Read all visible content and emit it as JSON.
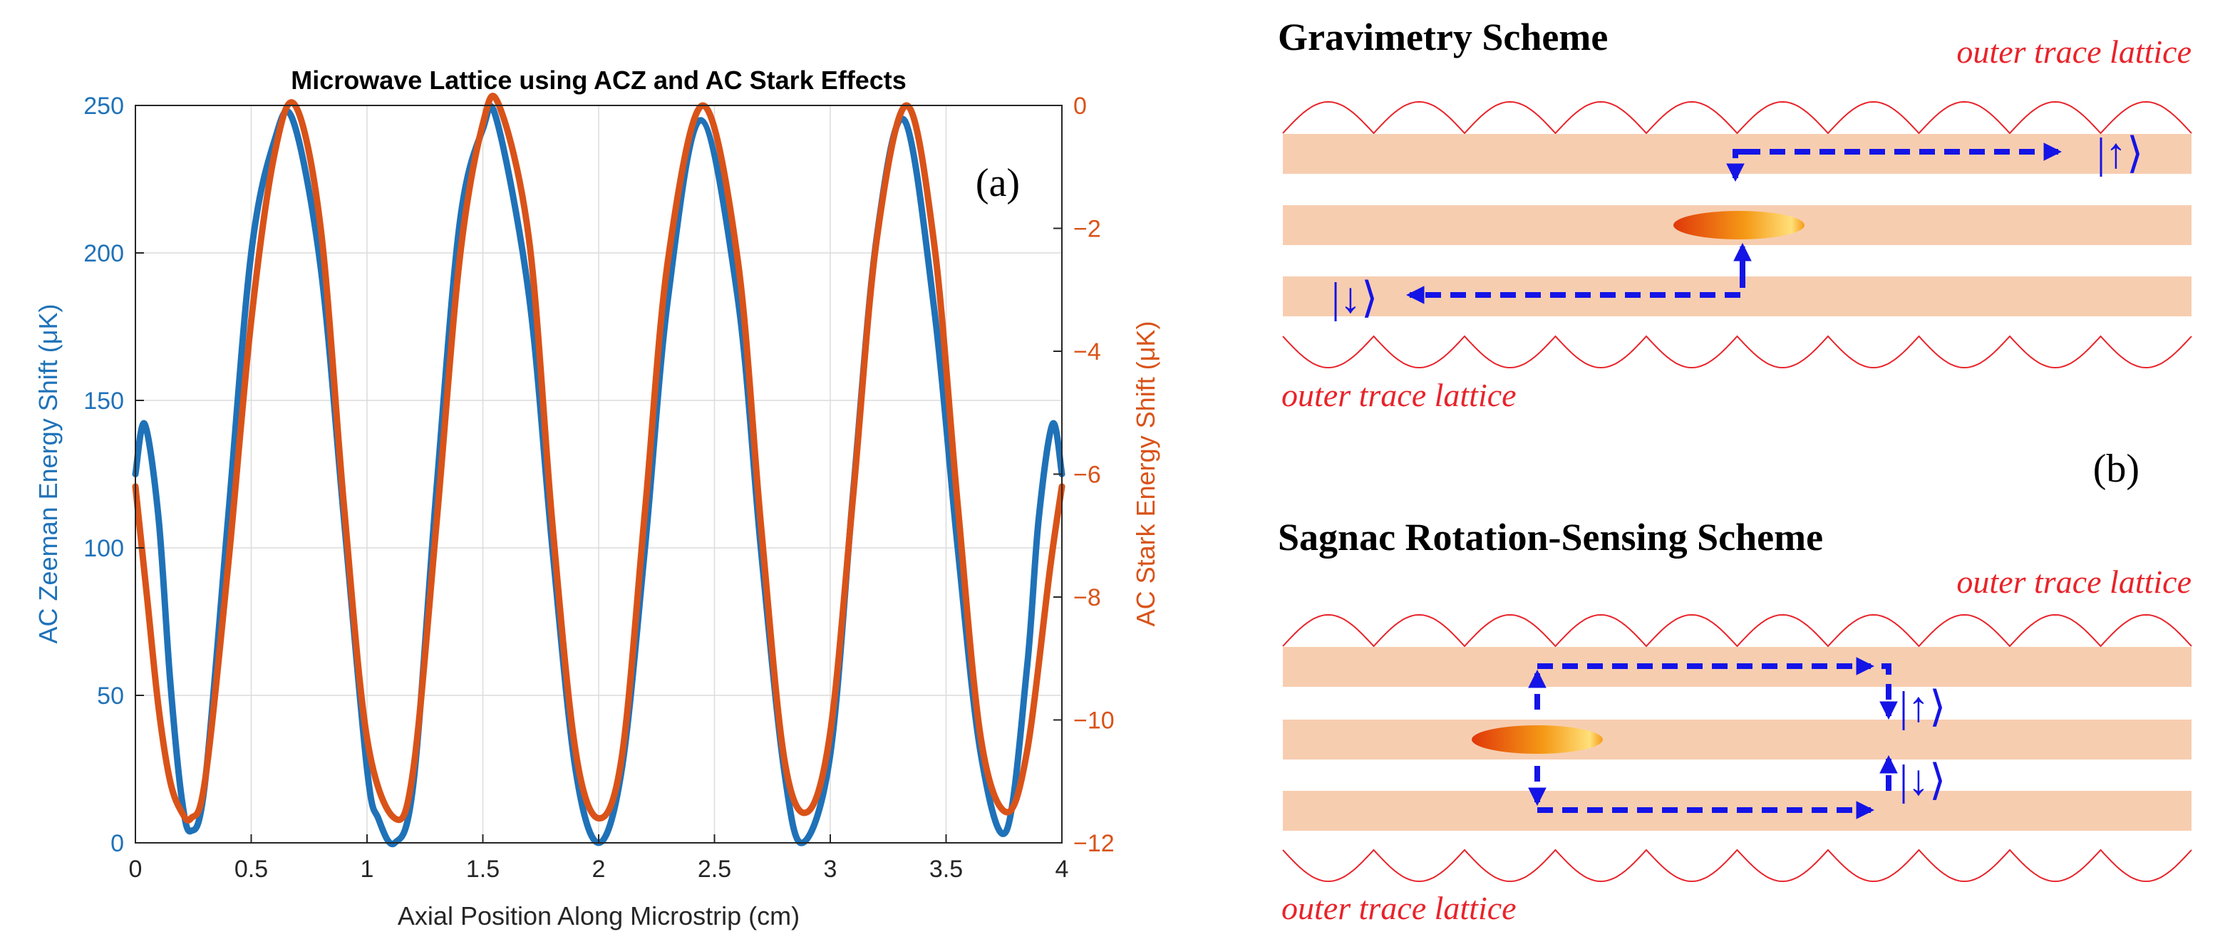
{
  "colors": {
    "zeeman": "#1f72b8",
    "stark": "#d95319",
    "lattice": "#e8232a",
    "band": "#f7cdb0",
    "arrow": "#1414e6"
  },
  "chart_data": {
    "type": "line",
    "title": "Microwave Lattice using ACZ and AC Stark Effects",
    "xlabel": "Axial Position Along Microstrip (cm)",
    "ylabel_left": "AC Zeeman Energy Shift (μK)",
    "ylabel_right": "AC Stark Energy Shift (μK)",
    "xlim": [
      0,
      4
    ],
    "ylim_left": [
      0,
      250
    ],
    "ylim_right": [
      -12,
      0
    ],
    "xticks": [
      "0",
      "0.5",
      "1",
      "1.5",
      "2",
      "2.5",
      "3",
      "3.5",
      "4"
    ],
    "yticks_left": [
      "0",
      "50",
      "100",
      "150",
      "200",
      "250"
    ],
    "yticks_right": [
      "0",
      "−2",
      "−4",
      "−6",
      "−8",
      "−10",
      "−12"
    ],
    "grid": true,
    "annotation": "(a)",
    "series": [
      {
        "name": "AC Zeeman Energy Shift",
        "axis": "left",
        "x": [
          0.0,
          0.04,
          0.1,
          0.15,
          0.2,
          0.24,
          0.3,
          0.4,
          0.5,
          0.6,
          0.68,
          0.8,
          0.9,
          1.0,
          1.05,
          1.12,
          1.2,
          1.3,
          1.4,
          1.5,
          1.56,
          1.7,
          1.8,
          1.9,
          2.0,
          2.1,
          2.2,
          2.3,
          2.44,
          2.6,
          2.7,
          2.8,
          2.88,
          3.0,
          3.1,
          3.2,
          3.32,
          3.45,
          3.55,
          3.65,
          3.76,
          3.85,
          3.9,
          3.96,
          4.0
        ],
        "values": [
          125,
          142,
          110,
          55,
          15,
          4,
          20,
          110,
          200,
          238,
          245,
          195,
          110,
          25,
          8,
          0,
          20,
          120,
          210,
          242,
          245,
          185,
          100,
          25,
          0,
          25,
          100,
          185,
          245,
          185,
          100,
          25,
          0,
          30,
          120,
          205,
          245,
          180,
          100,
          30,
          4,
          60,
          110,
          142,
          125
        ]
      },
      {
        "name": "AC Stark Energy Shift",
        "axis": "right",
        "x": [
          0.0,
          0.05,
          0.1,
          0.15,
          0.2,
          0.24,
          0.3,
          0.4,
          0.5,
          0.6,
          0.69,
          0.8,
          0.9,
          1.0,
          1.12,
          1.2,
          1.3,
          1.4,
          1.5,
          1.57,
          1.7,
          1.8,
          1.9,
          2.0,
          2.1,
          2.2,
          2.3,
          2.45,
          2.6,
          2.7,
          2.8,
          2.9,
          3.0,
          3.1,
          3.2,
          3.33,
          3.45,
          3.55,
          3.65,
          3.76,
          3.85,
          3.95,
          4.0
        ],
        "values": [
          -6.2,
          -8.0,
          -9.8,
          -11.0,
          -11.5,
          -11.6,
          -11.0,
          -7.5,
          -3.5,
          -0.8,
          0.0,
          -2.0,
          -6.5,
          -10.3,
          -11.6,
          -10.8,
          -6.8,
          -2.5,
          -0.3,
          0.0,
          -2.2,
          -6.8,
          -10.5,
          -11.6,
          -10.6,
          -6.6,
          -2.5,
          0.0,
          -2.5,
          -6.8,
          -10.6,
          -11.5,
          -10.2,
          -6.3,
          -2.2,
          0.0,
          -2.3,
          -6.5,
          -10.3,
          -11.5,
          -10.5,
          -7.5,
          -6.2
        ]
      }
    ]
  },
  "schemes": {
    "label": "(b)",
    "gravimetry": {
      "title": "Gravimetry Scheme",
      "lattice_top_label": "outer trace lattice",
      "lattice_bottom_label": "outer trace lattice",
      "state_up": "|↑⟩",
      "state_down": "|↓⟩"
    },
    "sagnac": {
      "title": "Sagnac Rotation-Sensing Scheme",
      "lattice_top_label": "outer trace lattice",
      "lattice_bottom_label": "outer trace lattice",
      "state_up": "|↑⟩",
      "state_down": "|↓⟩"
    }
  }
}
